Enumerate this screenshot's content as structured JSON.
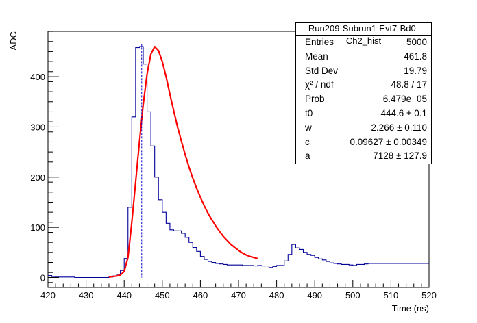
{
  "chart_data": {
    "type": "histogram",
    "xlabel": "Time (ns)",
    "ylabel": "ADC",
    "xlim": [
      420,
      520
    ],
    "ylim": [
      -15,
      500
    ],
    "x_ticks": [
      "420",
      "430",
      "440",
      "450",
      "460",
      "470",
      "480",
      "490",
      "500",
      "510",
      "520"
    ],
    "y_ticks": [
      "0",
      "100",
      "200",
      "300",
      "400"
    ],
    "grid": false,
    "bin_width": 1,
    "bin_start": 420,
    "histogram_values": [
      4,
      2,
      1,
      1,
      1,
      1,
      1,
      0,
      0,
      0,
      0,
      0,
      0,
      0,
      0,
      0,
      1,
      3,
      5,
      14,
      38,
      140,
      320,
      458,
      460,
      425,
      330,
      262,
      200,
      155,
      130,
      108,
      95,
      93,
      93,
      88,
      80,
      70,
      60,
      52,
      42,
      36,
      32,
      30,
      28,
      27,
      26,
      25,
      25,
      25,
      25,
      24,
      24,
      24,
      23,
      24,
      23,
      23,
      20,
      22,
      24,
      24,
      33,
      46,
      66,
      59,
      56,
      50,
      46,
      44,
      40,
      37,
      35,
      32,
      29,
      28,
      27,
      26,
      26,
      25,
      24,
      26,
      26,
      27,
      28,
      28,
      28,
      28,
      28,
      28,
      28,
      28,
      28,
      28,
      28,
      28,
      28,
      28,
      28,
      28
    ],
    "fit_curve": [
      [
        436,
        1
      ],
      [
        437,
        2
      ],
      [
        438,
        3
      ],
      [
        439,
        5
      ],
      [
        440,
        12
      ],
      [
        441,
        40
      ],
      [
        442,
        110
      ],
      [
        443,
        190
      ],
      [
        444,
        270
      ],
      [
        445,
        345
      ],
      [
        446,
        405
      ],
      [
        447,
        445
      ],
      [
        448,
        460
      ],
      [
        449,
        452
      ],
      [
        450,
        430
      ],
      [
        451,
        400
      ],
      [
        452,
        365
      ],
      [
        453,
        332
      ],
      [
        454,
        300
      ],
      [
        455,
        272
      ],
      [
        456,
        245
      ],
      [
        457,
        220
      ],
      [
        458,
        198
      ],
      [
        459,
        178
      ],
      [
        460,
        160
      ],
      [
        461,
        143
      ],
      [
        462,
        128
      ],
      [
        463,
        115
      ],
      [
        464,
        103
      ],
      [
        465,
        92
      ],
      [
        466,
        82
      ],
      [
        467,
        74
      ],
      [
        468,
        66
      ],
      [
        469,
        60
      ],
      [
        470,
        54
      ],
      [
        471,
        49
      ],
      [
        472,
        45
      ],
      [
        473,
        42
      ],
      [
        474,
        40
      ],
      [
        475,
        38
      ]
    ],
    "t0_marker": 444.6,
    "colors": {
      "histogram": "#000099",
      "fit": "#ff0000",
      "marker": "#0000cc"
    }
  },
  "stats": {
    "title": "Run209-Subrun1-Evt7-Bd0-Ch2_hist",
    "rows": [
      {
        "label": "Entries",
        "value": "5000"
      },
      {
        "label": "Mean",
        "value": "461.8"
      },
      {
        "label": "Std Dev",
        "value": "19.79"
      },
      {
        "label": "χ² / ndf",
        "value": "48.8 / 17"
      },
      {
        "label": "Prob",
        "value": "6.479e−05"
      },
      {
        "label": "t0",
        "value": "444.6 ± 0.1"
      },
      {
        "label": "w",
        "value": "2.266 ± 0.110"
      },
      {
        "label": "c",
        "value": "0.09627 ± 0.00349"
      },
      {
        "label": "a",
        "value": "7128 ± 127.9"
      }
    ]
  }
}
